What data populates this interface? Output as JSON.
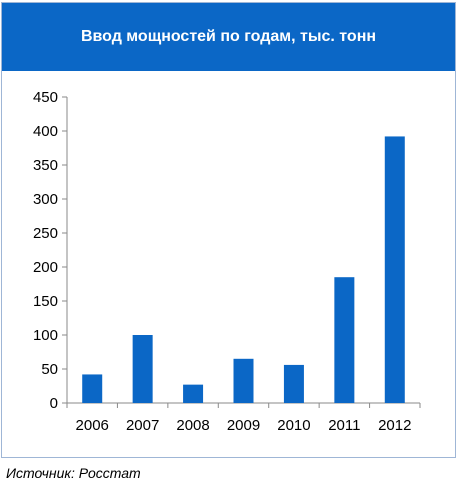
{
  "colors": {
    "header_bg": "#0b67c6",
    "bar": "#0b67c6",
    "axis": "#8a8a8a",
    "border": "#9fb6d6"
  },
  "chart_data": {
    "type": "bar",
    "title": "Ввод мощностей по годам, тыс. тонн",
    "categories": [
      "2006",
      "2007",
      "2008",
      "2009",
      "2010",
      "2011",
      "2012"
    ],
    "values": [
      42,
      100,
      27,
      65,
      56,
      185,
      392
    ],
    "ylim": [
      0,
      450
    ],
    "yticks": [
      0,
      50,
      100,
      150,
      200,
      250,
      300,
      350,
      400,
      450
    ],
    "grid": false,
    "legend": "none"
  },
  "source_note": "Источник: Росстат"
}
